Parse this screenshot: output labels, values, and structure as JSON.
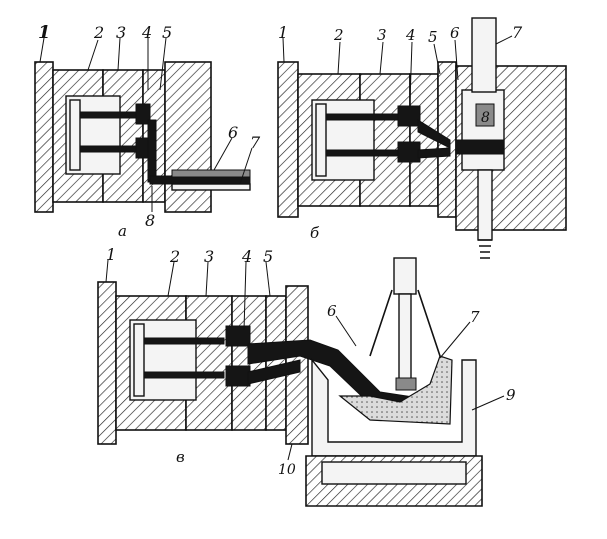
{
  "figure": {
    "panel_a": {
      "caption": "а",
      "labels": {
        "l1": "1",
        "l2": "2",
        "l3": "3",
        "l4": "4",
        "l5": "5",
        "l6": "6",
        "l7": "7",
        "l8": "8"
      }
    },
    "panel_b": {
      "caption": "б",
      "labels": {
        "l1": "1",
        "l2": "2",
        "l3": "3",
        "l4": "4",
        "l5": "5",
        "l6": "6",
        "l7": "7",
        "l8": "8"
      }
    },
    "panel_c": {
      "caption": "в",
      "labels": {
        "l1": "1",
        "l2": "2",
        "l3": "3",
        "l4": "4",
        "l5": "5",
        "l6": "6",
        "l7": "7",
        "l9": "9",
        "l10": "10"
      }
    }
  }
}
